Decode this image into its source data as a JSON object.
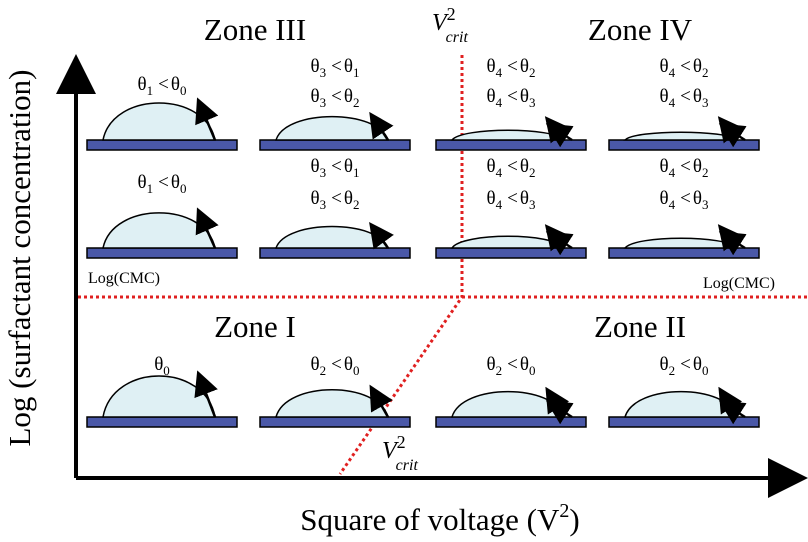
{
  "axes": {
    "y_label": "Log (surfactant concentration)",
    "x_label": {
      "text": "Square of voltage (V",
      "sup": "2",
      "close": ")"
    }
  },
  "symbol": "θ",
  "relation": "<",
  "critical_voltage": {
    "base": "V",
    "sub": "crit",
    "sup": "2"
  },
  "cmc_label": "Log(CMC)",
  "zones": [
    "Zone III",
    "Zone IV",
    "Zone I",
    "Zone II"
  ],
  "cells": [
    {
      "conditions": [
        [
          "1",
          "0"
        ]
      ]
    },
    {
      "conditions": [
        [
          "3",
          "1"
        ],
        [
          "3",
          "2"
        ]
      ]
    },
    {
      "conditions": [
        [
          "4",
          "2"
        ],
        [
          "4",
          "3"
        ]
      ]
    },
    {
      "conditions": [
        [
          "4",
          "2"
        ],
        [
          "4",
          "3"
        ]
      ]
    },
    {
      "conditions": [
        [
          "1",
          "0"
        ]
      ]
    },
    {
      "conditions": [
        [
          "3",
          "1"
        ],
        [
          "3",
          "2"
        ]
      ]
    },
    {
      "conditions": [
        [
          "4",
          "2"
        ],
        [
          "4",
          "3"
        ]
      ]
    },
    {
      "conditions": [
        [
          "4",
          "2"
        ],
        [
          "4",
          "3"
        ]
      ]
    },
    {
      "conditions": [
        [
          "0"
        ]
      ]
    },
    {
      "conditions": [
        [
          "2",
          "0"
        ]
      ]
    },
    {
      "conditions": [
        [
          "2",
          "0"
        ]
      ]
    },
    {
      "conditions": [
        [
          "2",
          "0"
        ]
      ]
    }
  ]
}
